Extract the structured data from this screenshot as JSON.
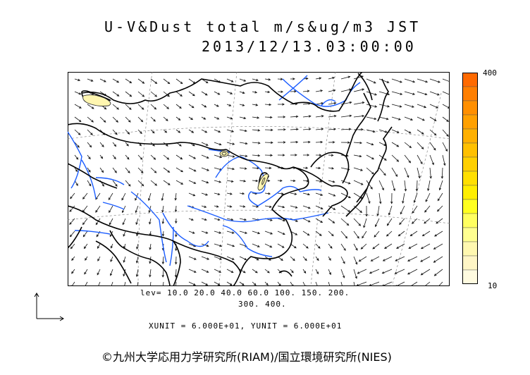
{
  "title": {
    "line1": "U-V&Dust total m/s&ug/m3 JST",
    "line2": "2013/12/13.03:00:00"
  },
  "colorbar": {
    "max_label": "400",
    "min_label": "10",
    "colors": [
      "#ff6a00",
      "#ff7f00",
      "#ff8f00",
      "#ffa000",
      "#ffb000",
      "#ffc000",
      "#ffd000",
      "#ffdf00",
      "#ffee00",
      "#ffff20",
      "#ffff60",
      "#ffff90",
      "#fff8b0",
      "#fff6c6",
      "#fffbe0"
    ]
  },
  "contour_levels": {
    "line1": "lev= 10.0 20.0 40.0 60.0 100. 150. 200.",
    "line2": "300. 400."
  },
  "vector_units": "XUNIT = 6.000E+01, YUNIT = 6.000E+01",
  "credit": "©九州大学応用力学研究所(RIAM)/国立環境研究所(NIES)",
  "map": {
    "coastline_color": "#000000",
    "river_color": "#1a5cff",
    "dust_fill_color": "#fff6b0",
    "dust_regions": [
      "northwest Mongolia border",
      "Inner Mongolia",
      "North China Plain"
    ]
  }
}
